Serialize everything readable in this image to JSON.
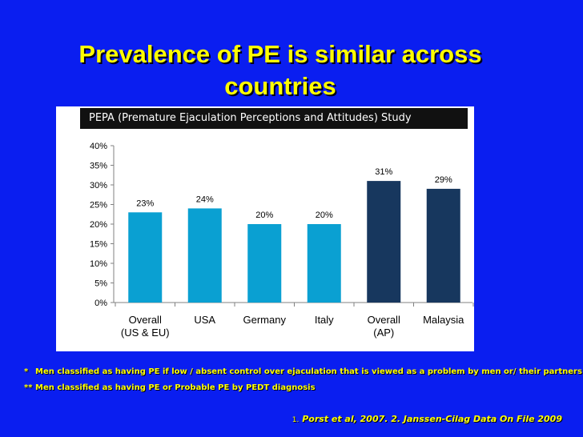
{
  "slide": {
    "title_line1": "Prevalence of PE is similar across",
    "title_line2": "countries",
    "study_label": "PEPA (Premature Ejaculation Perceptions and Attitudes) Study",
    "footnote1_marker": "*",
    "footnote1": "Men classified as having PE if low / absent control over ejaculation that is viewed as a problem by men or/ their partners",
    "footnote2_marker": "**",
    "footnote2": "Men classified as having PE or Probable PE by PEDT diagnosis",
    "reference_marker": "1.",
    "reference": "Porst et al, 2007.  2. Janssen-Cilag Data On File 2009"
  },
  "chart_data": {
    "type": "bar",
    "categories": [
      "Overall (US & EU)",
      "USA",
      "Germany",
      "Italy",
      "Overall (AP)",
      "Malaysia"
    ],
    "category_lines": [
      [
        "Overall",
        "(US & EU)"
      ],
      [
        "USA"
      ],
      [
        "Germany"
      ],
      [
        "Italy"
      ],
      [
        "Overall",
        "(AP)"
      ],
      [
        "Malaysia"
      ]
    ],
    "values": [
      23,
      24,
      20,
      20,
      31,
      29
    ],
    "data_labels": [
      "23%",
      "24%",
      "20%",
      "20%",
      "31%",
      "29%"
    ],
    "bar_colors": [
      "#0aa0d2",
      "#0aa0d2",
      "#0aa0d2",
      "#0aa0d2",
      "#17375e",
      "#17375e"
    ],
    "ylim": [
      0,
      40
    ],
    "yticks": [
      0,
      5,
      10,
      15,
      20,
      25,
      30,
      35,
      40
    ],
    "ytick_labels": [
      "0%",
      "5%",
      "10%",
      "15%",
      "20%",
      "25%",
      "30%",
      "35%",
      "40%"
    ],
    "grid": false,
    "legend": "none"
  }
}
